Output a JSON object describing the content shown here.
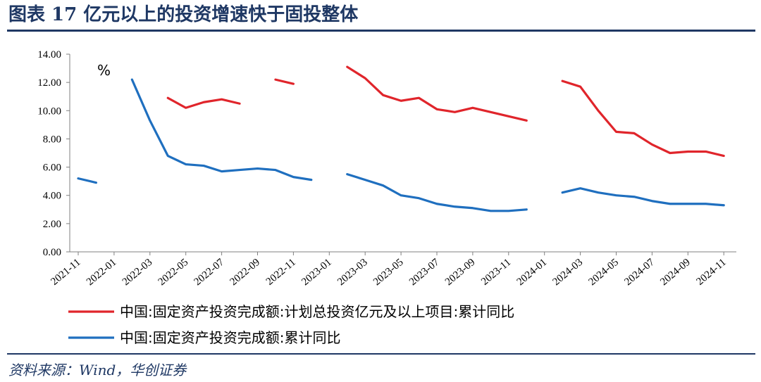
{
  "header": {
    "title": "图表 17   亿元以上的投资增速快于固投整体"
  },
  "footer": {
    "source": "资料来源：Wind，华创证券"
  },
  "chart_data": {
    "type": "line",
    "unit_label": "%",
    "ylim": [
      0,
      14
    ],
    "yticks": [
      "0.00",
      "2.00",
      "4.00",
      "6.00",
      "8.00",
      "10.00",
      "12.00",
      "14.00"
    ],
    "xticks": [
      "2021-11",
      "2022-01",
      "2022-03",
      "2022-05",
      "2022-07",
      "2022-09",
      "2022-11",
      "2023-01",
      "2023-03",
      "2023-05",
      "2023-07",
      "2023-09",
      "2023-11",
      "2024-01",
      "2024-03",
      "2024-05",
      "2024-07",
      "2024-09",
      "2024-11"
    ],
    "x": [
      "2021-11",
      "2021-12",
      "2022-01",
      "2022-02",
      "2022-03",
      "2022-04",
      "2022-05",
      "2022-06",
      "2022-07",
      "2022-08",
      "2022-09",
      "2022-10",
      "2022-11",
      "2022-12",
      "2023-01",
      "2023-02",
      "2023-03",
      "2023-04",
      "2023-05",
      "2023-06",
      "2023-07",
      "2023-08",
      "2023-09",
      "2023-10",
      "2023-11",
      "2023-12",
      "2024-01",
      "2024-02",
      "2024-03",
      "2024-04",
      "2024-05",
      "2024-06",
      "2024-07",
      "2024-08",
      "2024-09",
      "2024-10",
      "2024-11"
    ],
    "grid": false,
    "legend_position": "bottom",
    "series": [
      {
        "name": "中国:固定资产投资完成额:计划总投资亿元及以上项目:累计同比",
        "color": "#e0252b",
        "values": [
          null,
          null,
          null,
          null,
          null,
          10.9,
          10.2,
          10.6,
          10.8,
          10.5,
          null,
          12.2,
          11.9,
          null,
          null,
          13.1,
          12.3,
          11.1,
          10.7,
          10.9,
          10.1,
          9.9,
          10.2,
          9.9,
          9.6,
          9.3,
          null,
          12.1,
          11.7,
          10.0,
          8.5,
          8.4,
          7.6,
          7.0,
          7.1,
          7.1,
          6.8
        ]
      },
      {
        "name": "中国:固定资产投资完成额:累计同比",
        "color": "#1f6fbf",
        "values": [
          5.2,
          4.9,
          null,
          12.2,
          9.3,
          6.8,
          6.2,
          6.1,
          5.7,
          5.8,
          5.9,
          5.8,
          5.3,
          5.1,
          null,
          5.5,
          5.1,
          4.7,
          4.0,
          3.8,
          3.4,
          3.2,
          3.1,
          2.9,
          2.9,
          3.0,
          null,
          4.2,
          4.5,
          4.2,
          4.0,
          3.9,
          3.6,
          3.4,
          3.4,
          3.4,
          3.3
        ]
      }
    ]
  }
}
